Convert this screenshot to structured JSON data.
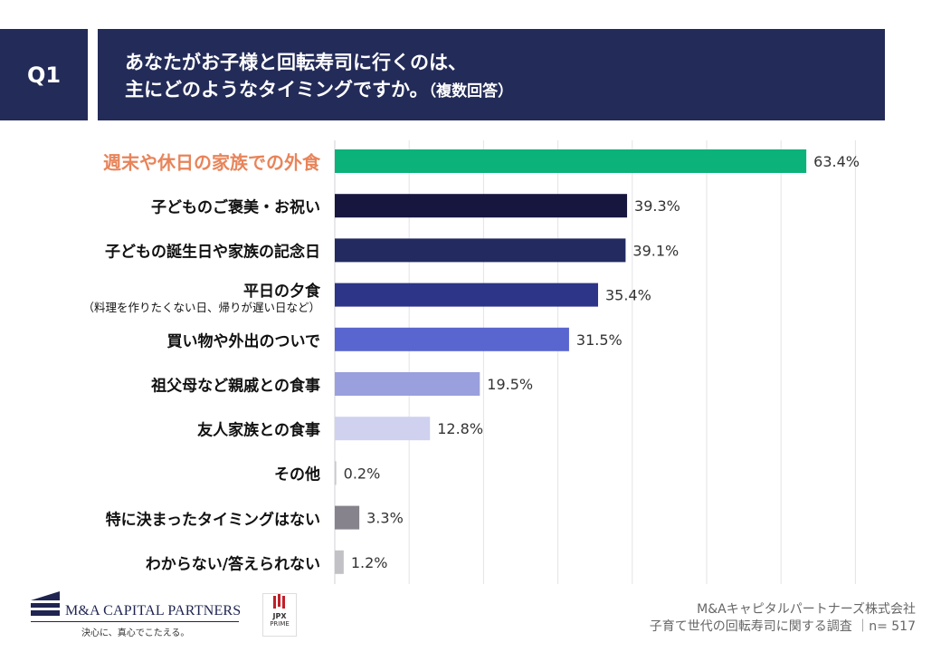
{
  "header": {
    "q_label": "Q1",
    "title_line1": "あなたがお子様と回転寿司に行くのは、",
    "title_line2": "主にどのようなタイミングですか。",
    "title_note": "（複数回答）"
  },
  "chart_data": {
    "type": "bar",
    "orientation": "horizontal",
    "xlim": [
      0,
      70
    ],
    "grid": true,
    "unit": "%",
    "categories": [
      "週末や休日の家族での外食",
      "子どものご褒美・お祝い",
      "子どもの誕生日や家族の記念日",
      "平日の夕食",
      "買い物や外出のついで",
      "祖父母など親戚との食事",
      "友人家族との食事",
      "その他",
      "特に決まったタイミングはない",
      "わからない/答えられない"
    ],
    "category_notes": [
      "",
      "",
      "",
      "（料理を作りたくない日、帰りが遅い日など）",
      "",
      "",
      "",
      "",
      "",
      ""
    ],
    "values": [
      63.4,
      39.3,
      39.1,
      35.4,
      31.5,
      19.5,
      12.8,
      0.2,
      3.3,
      1.2
    ],
    "value_labels": [
      "63.4%",
      "39.3%",
      "39.1%",
      "35.4%",
      "31.5%",
      "19.5%",
      "12.8%",
      "0.2%",
      "3.3%",
      "1.2%"
    ],
    "colors": [
      "#0bb27a",
      "#16163f",
      "#222a60",
      "#2c3588",
      "#5a66cf",
      "#9aa0dd",
      "#cfd1ef",
      "#c8c8d0",
      "#86838c",
      "#c2c2c6"
    ],
    "highlight_index": 0,
    "highlight_label_color": "#e8845a"
  },
  "footer": {
    "logo_text": "M&A CAPITAL PARTNERS",
    "slogan": "決心に、真心でこたえる。",
    "jpx_text": "JPX",
    "jpx_sub": "PRIME",
    "company": "M&Aキャピタルパートナーズ株式会社",
    "survey": "子育て世代の回転寿司に関する調査 ｜n= 517"
  }
}
